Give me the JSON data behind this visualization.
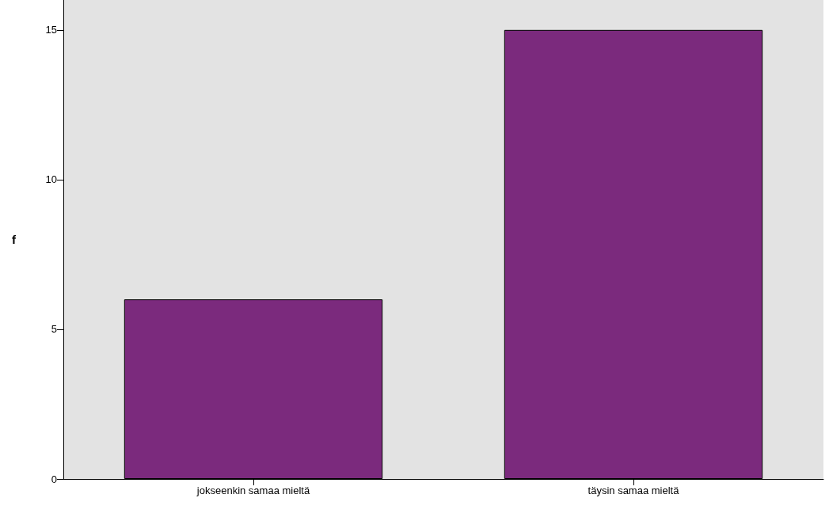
{
  "chart_data": {
    "type": "bar",
    "ylabel": "f",
    "categories": [
      "jokseenkin samaa mieltä",
      "täysin samaa mieltä"
    ],
    "values": [
      6,
      15
    ],
    "color": "#7b2a7d",
    "ylim": [
      0,
      16
    ],
    "yticks": [
      0,
      5,
      10,
      15
    ],
    "grid": false
  }
}
